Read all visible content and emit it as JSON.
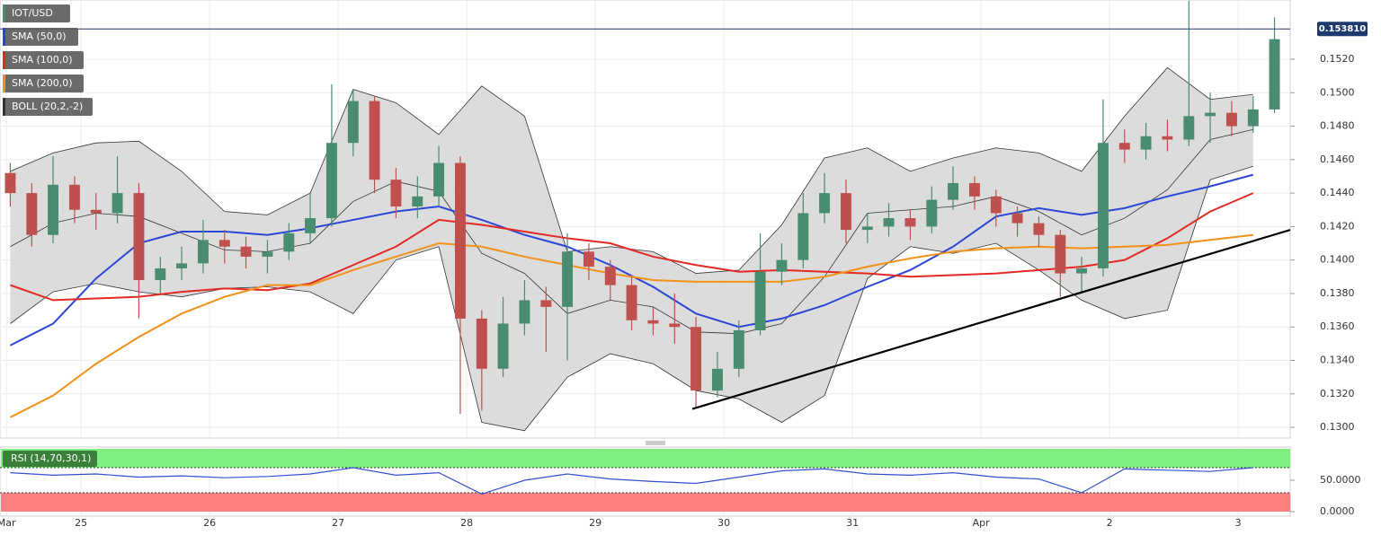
{
  "chart_data": [
    {
      "type": "candlestick",
      "symbol": "IOT/USD",
      "up_color": "#4a8c6f",
      "down_color": "#c0504d",
      "x": [
        24.45,
        24.617,
        24.783,
        24.95,
        25.117,
        25.283,
        25.45,
        25.617,
        25.783,
        25.95,
        26.117,
        26.283,
        26.45,
        26.617,
        26.783,
        26.95,
        27.117,
        27.283,
        27.45,
        27.617,
        27.783,
        27.95,
        28.117,
        28.283,
        28.45,
        28.617,
        28.783,
        28.95,
        29.117,
        29.283,
        29.45,
        29.617,
        29.783,
        29.95,
        30.117,
        30.283,
        30.45,
        30.617,
        30.783,
        30.95,
        31.117,
        31.283,
        31.45,
        31.617,
        31.783,
        31.95,
        32.117,
        32.283,
        32.45,
        32.617,
        32.783,
        32.95,
        33.117,
        33.283,
        33.45,
        33.617,
        33.783,
        33.95,
        34.117,
        34.283
      ],
      "open": [
        0.1452,
        0.144,
        0.1415,
        0.1445,
        0.143,
        0.1428,
        0.144,
        0.1388,
        0.1395,
        0.1398,
        0.1412,
        0.1408,
        0.1402,
        0.1405,
        0.1416,
        0.1425,
        0.147,
        0.1495,
        0.1448,
        0.1432,
        0.1438,
        0.1458,
        0.1365,
        0.1335,
        0.1362,
        0.1376,
        0.1372,
        0.1405,
        0.1396,
        0.1385,
        0.1364,
        0.1362,
        0.136,
        0.1322,
        0.1335,
        0.1358,
        0.1393,
        0.14,
        0.1428,
        0.144,
        0.1418,
        0.142,
        0.1425,
        0.142,
        0.1436,
        0.1446,
        0.1438,
        0.1428,
        0.1422,
        0.1415,
        0.1392,
        0.1395,
        0.147,
        0.1466,
        0.1474,
        0.1472,
        0.1486,
        0.1488,
        0.148,
        0.149
      ],
      "high": [
        0.1458,
        0.1446,
        0.1462,
        0.145,
        0.144,
        0.1462,
        0.1446,
        0.1402,
        0.1408,
        0.1424,
        0.1418,
        0.1414,
        0.1412,
        0.1422,
        0.144,
        0.1505,
        0.1502,
        0.1498,
        0.1455,
        0.145,
        0.1468,
        0.1462,
        0.137,
        0.1378,
        0.1388,
        0.1384,
        0.1416,
        0.141,
        0.14,
        0.139,
        0.1372,
        0.138,
        0.1366,
        0.1345,
        0.1364,
        0.1416,
        0.141,
        0.144,
        0.1452,
        0.1448,
        0.1428,
        0.1434,
        0.143,
        0.1444,
        0.1456,
        0.145,
        0.1442,
        0.1432,
        0.1426,
        0.1418,
        0.1402,
        0.1496,
        0.1478,
        0.1482,
        0.1484,
        0.1555,
        0.15,
        0.1495,
        0.1498,
        0.1545
      ],
      "low": [
        0.1432,
        0.1408,
        0.141,
        0.1422,
        0.1418,
        0.1422,
        0.1365,
        0.138,
        0.1388,
        0.1392,
        0.1398,
        0.1395,
        0.1392,
        0.14,
        0.141,
        0.142,
        0.1462,
        0.144,
        0.1425,
        0.1425,
        0.1432,
        0.1308,
        0.131,
        0.133,
        0.1355,
        0.1345,
        0.134,
        0.1388,
        0.1376,
        0.1358,
        0.1355,
        0.135,
        0.1312,
        0.1318,
        0.133,
        0.1355,
        0.1385,
        0.1395,
        0.1422,
        0.141,
        0.141,
        0.1414,
        0.1412,
        0.1416,
        0.143,
        0.143,
        0.142,
        0.1414,
        0.1408,
        0.1378,
        0.138,
        0.139,
        0.1458,
        0.146,
        0.1465,
        0.1468,
        0.147,
        0.1474,
        0.1476,
        0.1488
      ],
      "close": [
        0.144,
        0.1415,
        0.1445,
        0.143,
        0.1428,
        0.144,
        0.1388,
        0.1395,
        0.1398,
        0.1412,
        0.1408,
        0.1402,
        0.1405,
        0.1416,
        0.1425,
        0.147,
        0.1495,
        0.1448,
        0.1432,
        0.1438,
        0.1458,
        0.1365,
        0.1335,
        0.1362,
        0.1376,
        0.1372,
        0.1405,
        0.1396,
        0.1385,
        0.1364,
        0.1362,
        0.136,
        0.1322,
        0.1335,
        0.1358,
        0.1393,
        0.14,
        0.1428,
        0.144,
        0.1418,
        0.142,
        0.1425,
        0.142,
        0.1436,
        0.1446,
        0.1438,
        0.1428,
        0.1422,
        0.1415,
        0.1392,
        0.1395,
        0.147,
        0.1466,
        0.1474,
        0.1472,
        0.1486,
        0.1488,
        0.148,
        0.149,
        0.1532
      ],
      "last_price": {
        "value": 0.15381,
        "label": "0.153810"
      },
      "last_price_color": "#1f3b6e",
      "xlim": [
        24.37,
        34.405
      ],
      "xticks": [
        {
          "value": 24.42,
          "label": "Mar"
        },
        25,
        26,
        27,
        28,
        29,
        30,
        31,
        {
          "value": 32,
          "label": "Apr"
        },
        {
          "value": 33,
          "label": "2"
        },
        {
          "value": 34,
          "label": "3"
        }
      ],
      "ylim": [
        0.12936,
        0.15554
      ],
      "yticks": [
        {
          "value": 0.13,
          "label": "0.1300"
        },
        {
          "value": 0.132,
          "label": "0.1320"
        },
        {
          "value": 0.134,
          "label": "0.1340"
        },
        {
          "value": 0.136,
          "label": "0.1360"
        },
        {
          "value": 0.138,
          "label": "0.1380"
        },
        {
          "value": 0.14,
          "label": "0.1400"
        },
        {
          "value": 0.142,
          "label": "0.1420"
        },
        {
          "value": 0.144,
          "label": "0.1440"
        },
        {
          "value": 0.146,
          "label": "0.1460"
        },
        {
          "value": 0.148,
          "label": "0.1480"
        },
        {
          "value": 0.15,
          "label": "0.1500"
        },
        {
          "value": 0.152,
          "label": "0.1520"
        }
      ],
      "grid": true,
      "overlays": {
        "x": [
          24.45,
          24.783,
          25.117,
          25.45,
          25.783,
          26.117,
          26.45,
          26.783,
          27.117,
          27.45,
          27.783,
          28.117,
          28.45,
          28.783,
          29.117,
          29.45,
          29.783,
          30.117,
          30.45,
          30.783,
          31.117,
          31.45,
          31.783,
          32.117,
          32.45,
          32.783,
          33.117,
          33.45,
          33.783,
          34.117
        ],
        "series": [
          {
            "name": "SMA (50,0)",
            "color": "#2b46d6",
            "values": [
              0.1349,
              0.1362,
              0.1389,
              0.141,
              0.1417,
              0.1417,
              0.1415,
              0.1419,
              0.1424,
              0.1429,
              0.1432,
              0.1424,
              0.1415,
              0.1408,
              0.1397,
              0.1384,
              0.1368,
              0.136,
              0.1365,
              0.1373,
              0.1384,
              0.1394,
              0.1408,
              0.1426,
              0.1431,
              0.1427,
              0.1431,
              0.1438,
              0.1444,
              0.1451
            ]
          },
          {
            "name": "SMA (100,0)",
            "color": "#e32a22",
            "values": [
              0.1385,
              0.1376,
              0.1377,
              0.1378,
              0.1381,
              0.1383,
              0.1382,
              0.1386,
              0.1397,
              0.1408,
              0.1424,
              0.1421,
              0.1417,
              0.1413,
              0.141,
              0.1402,
              0.1397,
              0.1393,
              0.1394,
              0.1393,
              0.1392,
              0.139,
              0.1391,
              0.1392,
              0.1394,
              0.1396,
              0.14,
              0.1413,
              0.1429,
              0.144
            ]
          },
          {
            "name": "SMA (200,0)",
            "color": "#f39019",
            "values": [
              0.1306,
              0.1319,
              0.1338,
              0.1354,
              0.1368,
              0.1378,
              0.1385,
              0.1385,
              0.1394,
              0.1402,
              0.141,
              0.1408,
              0.1402,
              0.1397,
              0.1392,
              0.1388,
              0.1387,
              0.1387,
              0.1387,
              0.139,
              0.1396,
              0.1401,
              0.1405,
              0.1407,
              0.1408,
              0.1407,
              0.1408,
              0.1409,
              0.1412,
              0.1415
            ]
          }
        ],
        "bands": {
          "name": "BOLL (20,2,-2)",
          "color": "#333333",
          "fill": "#d6d6d6",
          "upper": [
            0.1453,
            0.1464,
            0.147,
            0.1471,
            0.1453,
            0.1429,
            0.1427,
            0.144,
            0.1502,
            0.1494,
            0.1475,
            0.1504,
            0.1486,
            0.1405,
            0.1408,
            0.1405,
            0.1392,
            0.1394,
            0.1421,
            0.1461,
            0.1467,
            0.1453,
            0.1461,
            0.1467,
            0.1464,
            0.1453,
            0.1486,
            0.1515,
            0.1496,
            0.1499
          ],
          "middle": [
            0.1408,
            0.1422,
            0.1428,
            0.1426,
            0.1416,
            0.1406,
            0.1405,
            0.141,
            0.1435,
            0.1447,
            0.1441,
            0.1404,
            0.1392,
            0.1368,
            0.1376,
            0.1372,
            0.1357,
            0.1356,
            0.1362,
            0.139,
            0.1428,
            0.143,
            0.1432,
            0.1438,
            0.1429,
            0.1415,
            0.1425,
            0.1442,
            0.1472,
            0.1478
          ],
          "lower": [
            0.1362,
            0.1381,
            0.1386,
            0.1381,
            0.1378,
            0.1383,
            0.1384,
            0.1381,
            0.1368,
            0.14,
            0.1408,
            0.1303,
            0.1298,
            0.133,
            0.1344,
            0.1338,
            0.1322,
            0.1317,
            0.1303,
            0.1319,
            0.1389,
            0.1408,
            0.1404,
            0.141,
            0.1394,
            0.1376,
            0.1365,
            0.137,
            0.1448,
            0.1456
          ]
        }
      },
      "trendline": {
        "x": [
          29.755,
          34.405
        ],
        "y": [
          0.1311,
          0.1418
        ],
        "color": "#000000"
      }
    },
    {
      "type": "line",
      "title": "RSI (14,70,30,1)",
      "color": "#3350d0",
      "x": [
        24.45,
        24.783,
        25.117,
        25.45,
        25.783,
        26.117,
        26.45,
        26.783,
        27.117,
        27.45,
        27.783,
        28.117,
        28.45,
        28.783,
        29.117,
        29.45,
        29.783,
        30.117,
        30.45,
        30.783,
        31.117,
        31.45,
        31.783,
        32.117,
        32.45,
        32.783,
        33.117,
        33.45,
        33.783,
        34.117
      ],
      "values": [
        62,
        58,
        60,
        55,
        57,
        54,
        56,
        60,
        70,
        58,
        62,
        28,
        50,
        60,
        52,
        48,
        45,
        55,
        65,
        68,
        60,
        58,
        62,
        55,
        52,
        30,
        68,
        66,
        64,
        70
      ],
      "xlim": [
        24.37,
        34.405
      ],
      "ylim": [
        0,
        100
      ],
      "yticks": [
        {
          "value": 0,
          "label": "0.0000"
        },
        {
          "value": 50,
          "label": "50.0000"
        }
      ],
      "upper_band": 70,
      "lower_band": 30,
      "upper_color": "#7ff07f",
      "lower_color": "#ff8080"
    }
  ]
}
